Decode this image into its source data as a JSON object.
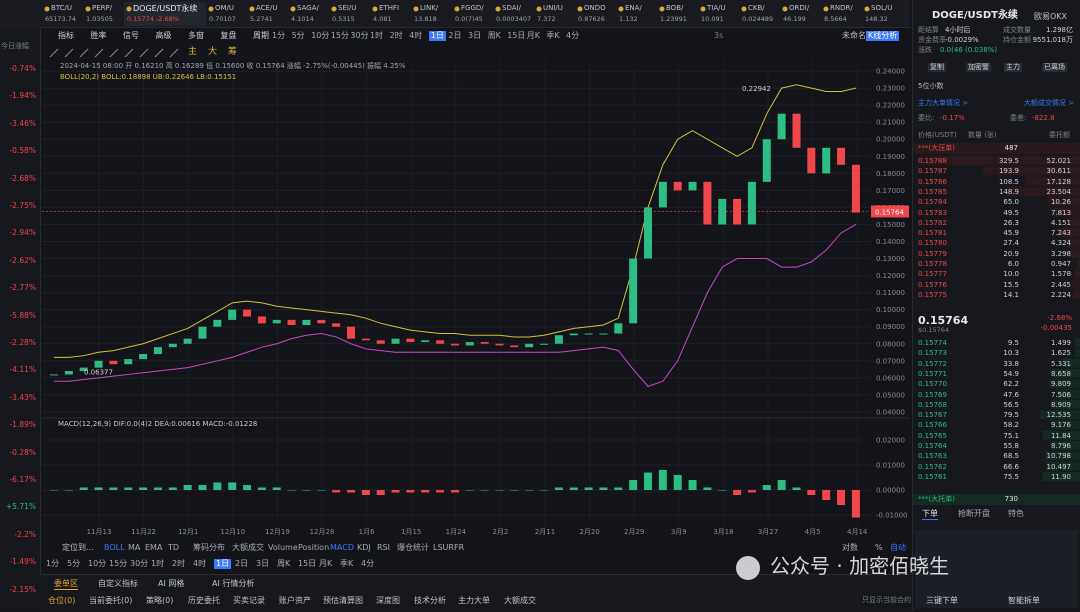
{
  "watchlist_tabs": [
    {
      "name": "BTC/U",
      "price": "65173.74"
    },
    {
      "name": "PERP/",
      "price": "1.03505"
    },
    {
      "name": "DOGE/USDT永续",
      "price": "0.15774 -2.68%"
    },
    {
      "name": "OM/U",
      "price": "0.70107"
    },
    {
      "name": "ACE/U",
      "price": "5.2741"
    },
    {
      "name": "SAGA/",
      "price": "4.1014"
    },
    {
      "name": "SEI/U",
      "price": "0.5315"
    },
    {
      "name": "ETHFI",
      "price": "4.081"
    },
    {
      "name": "LINK/",
      "price": "13.818"
    },
    {
      "name": "FGGD/",
      "price": "0.0(7)45"
    },
    {
      "name": "SDAI/",
      "price": "0.0003407"
    },
    {
      "name": "UNI/U",
      "price": "7.372"
    },
    {
      "name": "ONDO",
      "price": "0.87626"
    },
    {
      "name": "ENA/",
      "price": "1.132"
    },
    {
      "name": "BOB/",
      "price": "1.23991"
    },
    {
      "name": "TIA/U",
      "price": "10.091"
    },
    {
      "name": "CKB/",
      "price": "0.024489"
    },
    {
      "name": "ORDI/",
      "price": "46.199"
    },
    {
      "name": "RNDR/",
      "price": "8.5664"
    },
    {
      "name": "SOL/U",
      "price": "148.32"
    }
  ],
  "side_header": "今日涨幅",
  "side_changes": [
    "-0.74%",
    "-1.94%",
    "-3.46%",
    "-0.58%",
    "-2.68%",
    "-2.75%",
    "-2.94%",
    "-2.62%",
    "-2.77%",
    "-5.88%",
    "-2.28%",
    "-4.11%",
    "-3.43%",
    "-1.89%",
    "-0.28%",
    "-6.17%",
    "+5.71%",
    "-2.2%",
    "-1.49%",
    "-2.15%"
  ],
  "toolbar": [
    "指标",
    "胜率",
    "信号",
    "高级",
    "多窗",
    "复盘",
    "周期"
  ],
  "intervals": [
    "1分",
    "5分",
    "10分",
    "15分",
    "30分",
    "1时",
    "2时",
    "4时",
    "1日",
    "2日",
    "3日",
    "周K",
    "15日",
    "月K",
    "季K",
    "4分"
  ],
  "selected_interval": "1日",
  "toolbar_right": [
    "3s",
    "未命名",
    "K线分析"
  ],
  "draw_tools_text": [
    "主",
    "大",
    "筹"
  ],
  "chart_data": {
    "type": "candlestick",
    "info": "2024-04-15 08:00  开 0.16210  高 0.16289  低 0.15600  收 0.15764  涨幅 -2.75%(-0.00445)  振幅 4.25%",
    "boll_legend": "BOLL(20,2)  BOLL:0.18898  UB:0.22646  LB:0.15151",
    "up_color": "#2ebd85",
    "down_color": "#f0474c",
    "upper_color": "#d8c33a",
    "lower_color": "#c94ac8",
    "grid": true,
    "closes": [
      0.062,
      0.064,
      0.066,
      0.07,
      0.068,
      0.071,
      0.074,
      0.078,
      0.08,
      0.083,
      0.09,
      0.094,
      0.1,
      0.096,
      0.092,
      0.094,
      0.091,
      0.094,
      0.092,
      0.09,
      0.083,
      0.082,
      0.08,
      0.083,
      0.081,
      0.082,
      0.08,
      0.079,
      0.081,
      0.08,
      0.079,
      0.078,
      0.08,
      0.08,
      0.085,
      0.086,
      0.086,
      0.086,
      0.092,
      0.13,
      0.16,
      0.175,
      0.17,
      0.175,
      0.15,
      0.165,
      0.15,
      0.175,
      0.2,
      0.215,
      0.195,
      0.18,
      0.195,
      0.185,
      0.157
    ],
    "boll_upper": [
      0.072,
      0.072,
      0.073,
      0.075,
      0.076,
      0.078,
      0.08,
      0.083,
      0.086,
      0.089,
      0.094,
      0.099,
      0.104,
      0.105,
      0.104,
      0.102,
      0.101,
      0.1,
      0.099,
      0.098,
      0.097,
      0.095,
      0.092,
      0.09,
      0.088,
      0.087,
      0.086,
      0.086,
      0.085,
      0.085,
      0.085,
      0.084,
      0.084,
      0.085,
      0.087,
      0.089,
      0.09,
      0.091,
      0.095,
      0.125,
      0.16,
      0.185,
      0.2,
      0.205,
      0.2,
      0.195,
      0.19,
      0.195,
      0.215,
      0.23,
      0.232,
      0.23,
      0.228,
      0.228,
      0.23
    ],
    "boll_lower": [
      0.058,
      0.058,
      0.059,
      0.06,
      0.061,
      0.062,
      0.063,
      0.064,
      0.065,
      0.066,
      0.068,
      0.07,
      0.072,
      0.075,
      0.078,
      0.08,
      0.083,
      0.085,
      0.086,
      0.084,
      0.08,
      0.077,
      0.076,
      0.075,
      0.075,
      0.075,
      0.075,
      0.075,
      0.075,
      0.075,
      0.075,
      0.075,
      0.075,
      0.075,
      0.075,
      0.076,
      0.077,
      0.078,
      0.076,
      0.065,
      0.055,
      0.058,
      0.07,
      0.09,
      0.11,
      0.125,
      0.13,
      0.13,
      0.13,
      0.125,
      0.125,
      0.128,
      0.135,
      0.145,
      0.15
    ],
    "ylim": [
      0.0382,
      0.2465
    ],
    "yticks": [
      {
        "value": 0.24,
        "label": "0.24000"
      },
      {
        "value": 0.23,
        "label": "0.23000"
      },
      {
        "value": 0.22,
        "label": "0.22000"
      },
      {
        "value": 0.21,
        "label": "0.21000"
      },
      {
        "value": 0.2,
        "label": "0.20000"
      },
      {
        "value": 0.19,
        "label": "0.19000"
      },
      {
        "value": 0.18,
        "label": "0.18000"
      },
      {
        "value": 0.17,
        "label": "0.17000"
      },
      {
        "value": 0.16,
        "label": "0.16000"
      },
      {
        "value": 0.15,
        "label": "0.15000"
      },
      {
        "value": 0.14,
        "label": "0.14000"
      },
      {
        "value": 0.13,
        "label": "0.13000"
      },
      {
        "value": 0.12,
        "label": "0.12000"
      },
      {
        "value": 0.11,
        "label": "0.11000"
      },
      {
        "value": 0.1,
        "label": "0.10000"
      },
      {
        "value": 0.09,
        "label": "0.09000"
      },
      {
        "value": 0.08,
        "label": "0.08000"
      },
      {
        "value": 0.07,
        "label": "0.07000"
      },
      {
        "value": 0.06,
        "label": "0.06000"
      },
      {
        "value": 0.05,
        "label": "0.05000"
      },
      {
        "value": 0.04,
        "label": "0.04000"
      }
    ],
    "high_label": {
      "value": 0.22942,
      "label": "0.22942"
    },
    "low_label": {
      "value": 0.06377,
      "label": "0.06377"
    },
    "last_label": {
      "value": 0.15764,
      "label": "0.15764"
    },
    "x_labels": [
      "11月13",
      "11月22",
      "12月1",
      "12月10",
      "12月19",
      "12月28",
      "1月6",
      "1月15",
      "1月24",
      "2月2",
      "2月11",
      "2月20",
      "2月29",
      "3月9",
      "3月18",
      "3月27",
      "4月5",
      "4月14"
    ],
    "macd": {
      "legend": "MACD(12,26,9)  DIF:0.0(4)2  DEA:0.00616  MACD:-0.01228",
      "values": [
        0.0,
        0.0,
        0.001,
        0.001,
        0.001,
        0.001,
        0.001,
        0.001,
        0.001,
        0.002,
        0.002,
        0.003,
        0.003,
        0.002,
        0.001,
        0.001,
        0.0,
        0.0,
        0.0,
        -0.001,
        -0.001,
        -0.002,
        -0.002,
        -0.001,
        -0.001,
        -0.001,
        -0.001,
        -0.001,
        0.0,
        0.0,
        0.0,
        0.0,
        0.0,
        0.0,
        0.001,
        0.001,
        0.001,
        0.001,
        0.001,
        0.004,
        0.007,
        0.008,
        0.006,
        0.004,
        0.001,
        0.0,
        -0.002,
        -0.001,
        0.002,
        0.004,
        0.001,
        -0.002,
        -0.004,
        -0.006,
        -0.011
      ],
      "ylim": [
        -0.014,
        0.024
      ],
      "yticks": [
        {
          "value": 0.02,
          "label": "0.02000"
        },
        {
          "value": 0.01,
          "label": "0.01000"
        },
        {
          "value": 0,
          "label": "0.00000"
        },
        {
          "value": -0.01,
          "label": "-0.01000"
        }
      ]
    }
  },
  "indicator_bar": {
    "locate": "定位到...",
    "main": [
      "BOLL",
      "MA",
      "EMA",
      "TD",
      "筹码分布",
      "大额成交"
    ],
    "sub": [
      "Volume",
      "Position",
      "MACD",
      "KDJ",
      "RSI",
      "爆仓统计",
      "LSUR",
      "FR"
    ],
    "right": [
      "对数",
      "%",
      "自动"
    ]
  },
  "bottom_tabs": [
    "委单区",
    "自定义指标",
    "AI 网格",
    "AI 行情分析"
  ],
  "bottom_subtabs": [
    "仓位(0)",
    "当前委托(0)",
    "策略(0)",
    "历史委托",
    "买卖记录",
    "账户资产",
    "预估清算图",
    "深度图",
    "技术分析",
    "主力大单",
    "大额成交"
  ],
  "only_current": "只显示当前合约",
  "right_panel": {
    "symbol": "DOGE/USDT永续",
    "exchange": "欧易OKX",
    "stats": [
      [
        "距结算",
        "4小时后",
        "成交数量",
        "1.298亿"
      ],
      [
        "资金费率",
        "-0.0029%",
        "持仓金额",
        "9551.018万"
      ]
    ],
    "change_label": "涨跌",
    "change": "0.0(46 (0.038%)",
    "buttons": [
      "复制",
      "加密警",
      "主力",
      "已离场"
    ],
    "decimals": "5位小数",
    "links": [
      "主力大单情况 >",
      "大额成交情况 >"
    ],
    "ratio": [
      "委比:",
      "-0.17%",
      "委差:",
      "-822.8"
    ],
    "book_header": [
      "价格(USDT)",
      "数量 (张)",
      "委托额"
    ],
    "ask_wall": [
      "***(大压单)",
      "487"
    ],
    "asks": [
      [
        "0.15788",
        "329.5",
        "52.021"
      ],
      [
        "0.15787",
        "193.9",
        "30.611"
      ],
      [
        "0.15786",
        "108.5",
        "17.128"
      ],
      [
        "0.15785",
        "148.9",
        "23.504"
      ],
      [
        "0.15784",
        "65.0",
        "10.26"
      ],
      [
        "0.15783",
        "49.5",
        "7.813"
      ],
      [
        "0.15782",
        "26.3",
        "4.151"
      ],
      [
        "0.15781",
        "45.9",
        "7.243"
      ],
      [
        "0.15780",
        "27.4",
        "4.324"
      ],
      [
        "0.15779",
        "20.9",
        "3.298"
      ],
      [
        "0.15778",
        "6.0",
        "0.947"
      ],
      [
        "0.15777",
        "10.0",
        "1.578"
      ],
      [
        "0.15776",
        "15.5",
        "2.445"
      ],
      [
        "0.15775",
        "14.1",
        "2.224"
      ]
    ],
    "last": "0.15764",
    "last_usd": "$0.15764",
    "last_change": "-2.68%",
    "last_diff": "-0.00435",
    "bids": [
      [
        "0.15774",
        "9.5",
        "1.499"
      ],
      [
        "0.15773",
        "10.3",
        "1.625"
      ],
      [
        "0.15772",
        "33.8",
        "5.331"
      ],
      [
        "0.15771",
        "54.9",
        "8.658"
      ],
      [
        "0.15770",
        "62.2",
        "9.809"
      ],
      [
        "0.15769",
        "47.6",
        "7.506"
      ],
      [
        "0.15768",
        "56.5",
        "8.909"
      ],
      [
        "0.15767",
        "79.5",
        "12.535"
      ],
      [
        "0.15766",
        "58.2",
        "9.176"
      ],
      [
        "0.15765",
        "75.1",
        "11.84"
      ],
      [
        "0.15764",
        "55.8",
        "8.796"
      ],
      [
        "0.15763",
        "68.5",
        "10.798"
      ],
      [
        "0.15762",
        "66.6",
        "10.497"
      ],
      [
        "0.15761",
        "75.5",
        "11.90"
      ]
    ],
    "bid_wall": [
      "***(大托单)",
      "730"
    ],
    "order_tabs": [
      "下单",
      "抢断开盘",
      "特色"
    ],
    "order_buttons": [
      "三键下单",
      "智能拆单"
    ]
  },
  "watermark": "公众号 · 加密佰晓生"
}
